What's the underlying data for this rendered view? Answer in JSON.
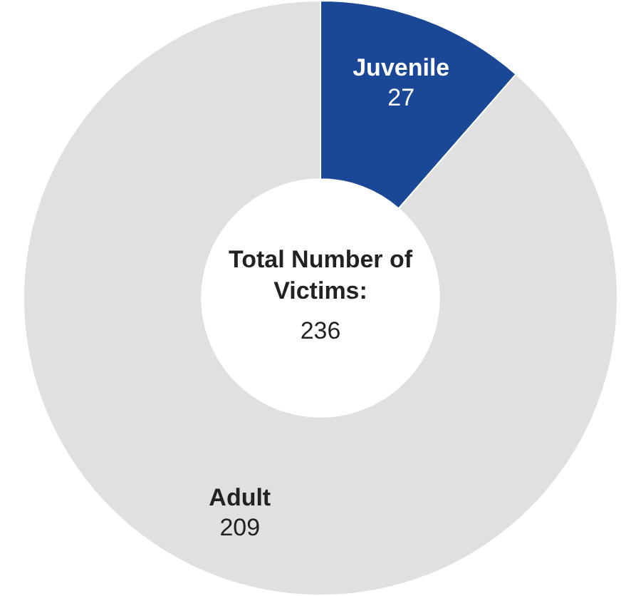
{
  "chart_data": {
    "type": "donut",
    "categories": [
      "Juvenile",
      "Adult"
    ],
    "values": [
      27,
      209
    ],
    "colors": [
      "#1a4796",
      "#e0e0e0"
    ],
    "data_labels": true,
    "annotations": [
      "Total Number of Victims:",
      "236"
    ]
  }
}
